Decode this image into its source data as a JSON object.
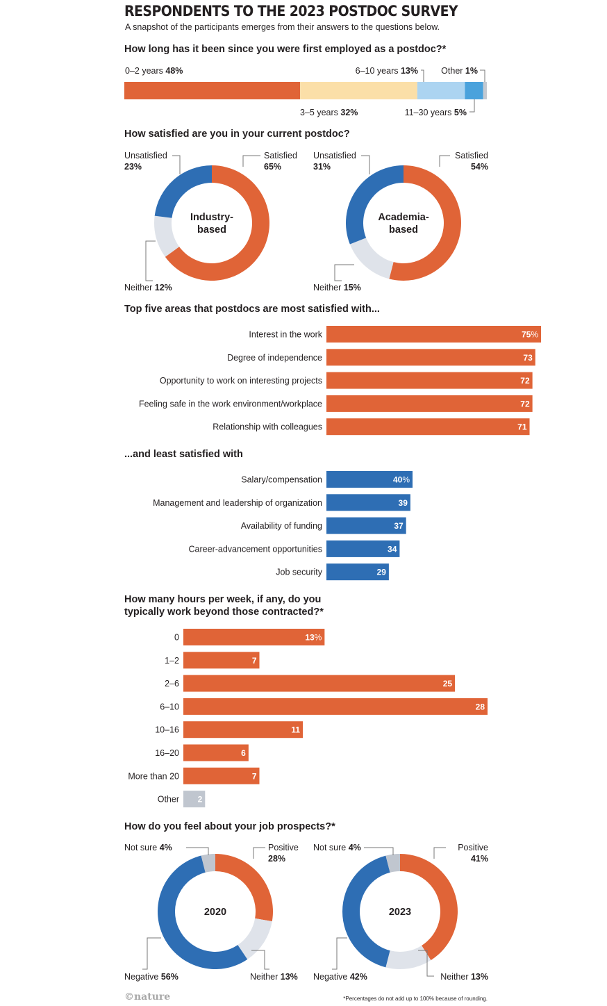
{
  "header": {
    "title": "RESPONDENTS TO THE 2023 POSTDOC SURVEY",
    "subtitle": "A snapshot of the participants emerges from their answers to the questions below."
  },
  "colors": {
    "orange": "#e06437",
    "blue": "#2e6eb4",
    "grey": "#dfe3ea",
    "greyDark": "#c0c6cf",
    "peach": "#fbdfa8",
    "lightBlue": "#acd4f1",
    "midBlue": "#4aa2dc",
    "leader": "#777777"
  },
  "sections": {
    "tenure": {
      "question": "How long has it been since you were first employed as a postdoc?*"
    },
    "satisfaction": {
      "question": "How satisfied are you in your current postdoc?"
    },
    "top": {
      "question": "Top five areas that postdocs are most satisfied with..."
    },
    "least": {
      "question": "...and least satisfied with"
    },
    "hours": {
      "question_line1": "How many hours per week, if any, do you",
      "question_line2": "typically work beyond those contracted?*"
    },
    "prospects": {
      "question": "How do you feel about your job prospects?*"
    }
  },
  "chart_data": [
    {
      "id": "tenure",
      "type": "bar",
      "stacked": true,
      "orientation": "horizontal",
      "categories": [
        "0–2 years",
        "3–5 years",
        "6–10 years",
        "11–30 years",
        "Other"
      ],
      "values": [
        48,
        32,
        13,
        5,
        1
      ],
      "value_labels": [
        "48%",
        "32%",
        "13%",
        "5%",
        "1%"
      ],
      "colors": [
        "#e06437",
        "#fbdfa8",
        "#acd4f1",
        "#4aa2dc",
        "#c4c9d0"
      ]
    },
    {
      "id": "industry",
      "type": "pie",
      "center_label": [
        "Industry-",
        "based"
      ],
      "slices": [
        {
          "label": "Satisfied",
          "value": 65,
          "display": "65%",
          "color": "#e06437"
        },
        {
          "label": "Neither",
          "value": 12,
          "display": "12%",
          "color": "#dfe3ea"
        },
        {
          "label": "Unsatisfied",
          "value": 23,
          "display": "23%",
          "color": "#2e6eb4"
        }
      ]
    },
    {
      "id": "academia",
      "type": "pie",
      "center_label": [
        "Academia-",
        "based"
      ],
      "slices": [
        {
          "label": "Satisfied",
          "value": 54,
          "display": "54%",
          "color": "#e06437"
        },
        {
          "label": "Neither",
          "value": 15,
          "display": "15%",
          "color": "#dfe3ea"
        },
        {
          "label": "Unsatisfied",
          "value": 31,
          "display": "31%",
          "color": "#2e6eb4"
        }
      ]
    },
    {
      "id": "top",
      "type": "bar",
      "orientation": "horizontal",
      "categories": [
        "Interest in the work",
        "Degree of independence",
        "Opportunity to work on interesting projects",
        "Feeling safe in the work environment/workplace",
        "Relationship with colleagues"
      ],
      "values": [
        75,
        73,
        72,
        72,
        71
      ],
      "value_labels": [
        "75%",
        "73",
        "72",
        "72",
        "71"
      ],
      "color": "#e06437"
    },
    {
      "id": "least",
      "type": "bar",
      "orientation": "horizontal",
      "categories": [
        "Salary/compensation",
        "Management and leadership of organization",
        "Availability of funding",
        "Career-advancement opportunities",
        "Job security"
      ],
      "values": [
        40,
        39,
        37,
        34,
        29
      ],
      "value_labels": [
        "40%",
        "39",
        "37",
        "34",
        "29"
      ],
      "color": "#2e6eb4"
    },
    {
      "id": "hours",
      "type": "bar",
      "orientation": "horizontal",
      "categories": [
        "0",
        "1–2",
        "2–6",
        "6–10",
        "10–16",
        "16–20",
        "More than 20",
        "Other"
      ],
      "values": [
        13,
        7,
        25,
        28,
        11,
        6,
        7,
        2
      ],
      "value_labels": [
        "13%",
        "7",
        "25",
        "28",
        "11",
        "6",
        "7",
        "2"
      ],
      "colors": [
        "#e06437",
        "#e06437",
        "#e06437",
        "#e06437",
        "#e06437",
        "#e06437",
        "#e06437",
        "#c0c6cf"
      ]
    },
    {
      "id": "prospects2020",
      "type": "pie",
      "center_label": [
        "2020"
      ],
      "slices": [
        {
          "label": "Positive",
          "value": 28,
          "display": "28%",
          "color": "#e06437"
        },
        {
          "label": "Neither",
          "value": 13,
          "display": "13%",
          "color": "#dfe3ea"
        },
        {
          "label": "Negative",
          "value": 56,
          "display": "56%",
          "color": "#2e6eb4"
        },
        {
          "label": "Not sure",
          "value": 4,
          "display": "4%",
          "color": "#c0c6cf"
        }
      ]
    },
    {
      "id": "prospects2023",
      "type": "pie",
      "center_label": [
        "2023"
      ],
      "slices": [
        {
          "label": "Positive",
          "value": 41,
          "display": "41%",
          "color": "#e06437"
        },
        {
          "label": "Neither",
          "value": 13,
          "display": "13%",
          "color": "#dfe3ea"
        },
        {
          "label": "Negative",
          "value": 42,
          "display": "42%",
          "color": "#2e6eb4"
        },
        {
          "label": "Not sure",
          "value": 4,
          "display": "4%",
          "color": "#c0c6cf"
        }
      ]
    }
  ],
  "footer": {
    "logo": "©nature",
    "footnote": "*Percentages do not add up to 100% because of rounding."
  }
}
